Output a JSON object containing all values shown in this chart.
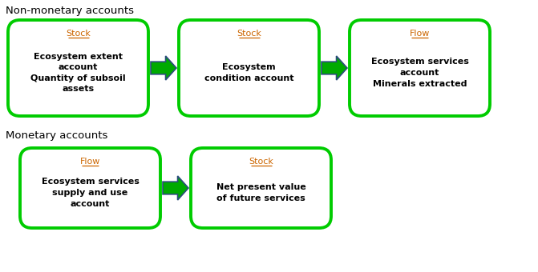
{
  "title_non_monetary": "Non-monetary accounts",
  "title_monetary": "Monetary accounts",
  "box_border_color": "#00cc00",
  "box_fill_color": "#ffffff",
  "arrow_fill_color": "#00aa00",
  "arrow_edge_color": "#2a4d7a",
  "label_color_orange": "#cc6600",
  "label_color_black": "#000000",
  "bg_color": "#ffffff",
  "boxes_row1": [
    {
      "label_type": "Stock",
      "lines": [
        "Ecosystem extent",
        "account",
        "Quantity of subsoil",
        "assets"
      ]
    },
    {
      "label_type": "Stock",
      "lines": [
        "Ecosystem",
        "condition account"
      ]
    },
    {
      "label_type": "Flow",
      "lines": [
        "Ecosystem services",
        "account",
        "Minerals extracted"
      ]
    }
  ],
  "boxes_row2": [
    {
      "label_type": "Flow",
      "lines": [
        "Ecosystem services",
        "supply and use",
        "account"
      ]
    },
    {
      "label_type": "Stock",
      "lines": [
        "Net present value",
        "of future services"
      ]
    }
  ]
}
